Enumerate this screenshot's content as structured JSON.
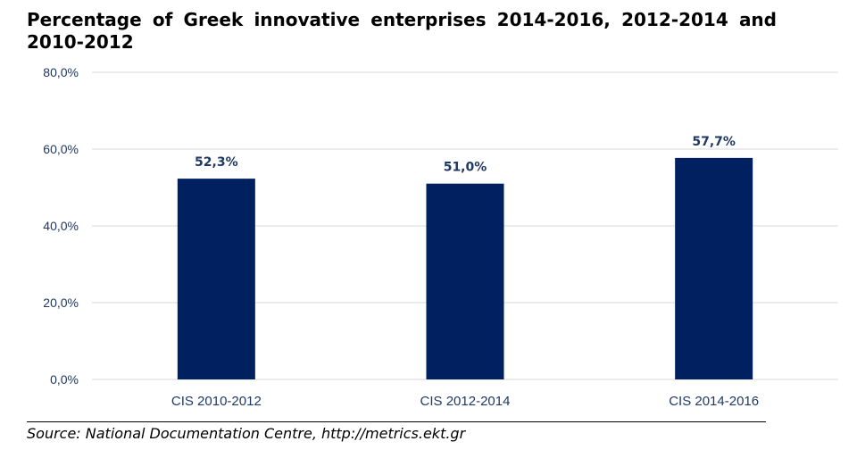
{
  "chart_data": {
    "type": "bar",
    "title": "Percentage of Greek innovative enterprises 2014-2016, 2012-2014 and 2010-2012",
    "categories": [
      "CIS 2010-2012",
      "CIS 2012-2014",
      "CIS 2014-2016"
    ],
    "values": [
      52.3,
      51.0,
      57.7
    ],
    "data_labels": [
      "52,3%",
      "51,0%",
      "57,7%"
    ],
    "ylim": [
      0,
      80
    ],
    "y_ticks": [
      0,
      20,
      40,
      60,
      80
    ],
    "y_tick_labels": [
      "0,0%",
      "20,0%",
      "40,0%",
      "60,0%",
      "80,0%"
    ],
    "xlabel": "",
    "ylabel": "",
    "grid": true,
    "legend": "none",
    "bar_color": "#002060",
    "grid_color": "#d9d9d9",
    "label_color": "#1f3864"
  },
  "source": "Source: National Documentation Centre, http://metrics.ekt.gr"
}
